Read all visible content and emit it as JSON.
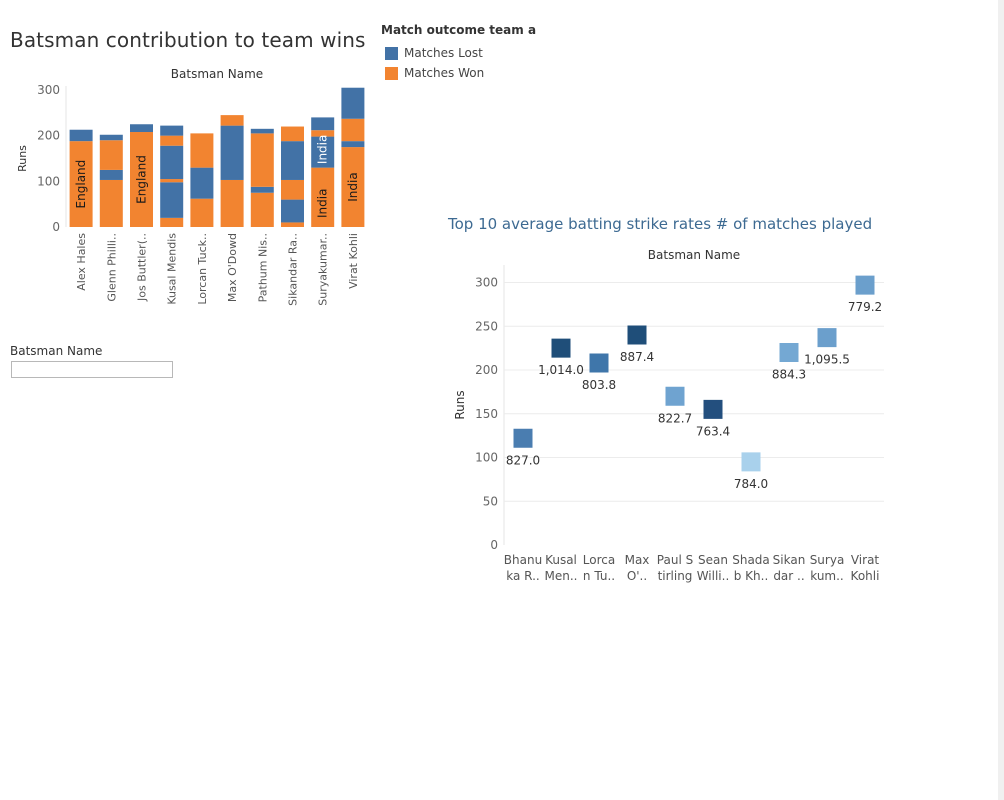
{
  "chart_data": [
    {
      "type": "bar",
      "stacked": true,
      "title": "Batsman contribution to team wins",
      "header": "Batsman Name",
      "ylabel": "Runs",
      "ylim": [
        0,
        300
      ],
      "yticks": [
        0,
        100,
        200,
        300
      ],
      "grid": false,
      "legend": {
        "title": "Match outcome team a",
        "position": "top-right",
        "items": [
          {
            "label": "Matches Lost",
            "color": "#4272a6"
          },
          {
            "label": "Matches Won",
            "color": "#f28430"
          }
        ]
      },
      "categories": [
        "Alex Hales",
        "Glenn Philli..",
        "Jos Buttler(..",
        "Kusal Mendis",
        "Lorcan Tuck..",
        "Max O'Dowd",
        "Pathum Nis..",
        "Sikandar Ra..",
        "Suryakumar..",
        "Virat Kohli"
      ],
      "bars": [
        {
          "segments": [
            {
              "outcome": "won",
              "v0": 0,
              "v1": 188
            },
            {
              "outcome": "lost",
              "v0": 188,
              "v1": 213
            }
          ],
          "label": "England"
        },
        {
          "segments": [
            {
              "outcome": "won",
              "v0": 0,
              "v1": 103
            },
            {
              "outcome": "lost",
              "v0": 103,
              "v1": 125
            },
            {
              "outcome": "won",
              "v0": 125,
              "v1": 190
            },
            {
              "outcome": "lost",
              "v0": 190,
              "v1": 202
            }
          ],
          "label": ""
        },
        {
          "segments": [
            {
              "outcome": "won",
              "v0": 0,
              "v1": 208
            },
            {
              "outcome": "lost",
              "v0": 208,
              "v1": 225
            }
          ],
          "label": "England"
        },
        {
          "segments": [
            {
              "outcome": "won",
              "v0": 0,
              "v1": 20
            },
            {
              "outcome": "lost",
              "v0": 20,
              "v1": 98
            },
            {
              "outcome": "won",
              "v0": 98,
              "v1": 105
            },
            {
              "outcome": "lost",
              "v0": 105,
              "v1": 178
            },
            {
              "outcome": "won",
              "v0": 178,
              "v1": 200
            },
            {
              "outcome": "lost",
              "v0": 200,
              "v1": 222
            }
          ],
          "label": ""
        },
        {
          "segments": [
            {
              "outcome": "won",
              "v0": 0,
              "v1": 62
            },
            {
              "outcome": "lost",
              "v0": 62,
              "v1": 130
            },
            {
              "outcome": "won",
              "v0": 130,
              "v1": 205
            }
          ],
          "label": ""
        },
        {
          "segments": [
            {
              "outcome": "won",
              "v0": 0,
              "v1": 103
            },
            {
              "outcome": "lost",
              "v0": 103,
              "v1": 222
            },
            {
              "outcome": "won",
              "v0": 222,
              "v1": 245
            }
          ],
          "label": ""
        },
        {
          "segments": [
            {
              "outcome": "won",
              "v0": 0,
              "v1": 75
            },
            {
              "outcome": "lost",
              "v0": 75,
              "v1": 88
            },
            {
              "outcome": "won",
              "v0": 88,
              "v1": 205
            },
            {
              "outcome": "lost",
              "v0": 205,
              "v1": 215
            }
          ],
          "label": ""
        },
        {
          "segments": [
            {
              "outcome": "won",
              "v0": 0,
              "v1": 10
            },
            {
              "outcome": "lost",
              "v0": 10,
              "v1": 60
            },
            {
              "outcome": "won",
              "v0": 60,
              "v1": 103
            },
            {
              "outcome": "lost",
              "v0": 103,
              "v1": 188
            },
            {
              "outcome": "won",
              "v0": 188,
              "v1": 220
            }
          ],
          "label": ""
        },
        {
          "segments": [
            {
              "outcome": "won",
              "v0": 0,
              "v1": 130
            },
            {
              "outcome": "lost",
              "v0": 130,
              "v1": 198
            },
            {
              "outcome": "won",
              "v0": 198,
              "v1": 212
            },
            {
              "outcome": "lost",
              "v0": 212,
              "v1": 240
            }
          ],
          "label": "India",
          "label2": "India"
        },
        {
          "segments": [
            {
              "outcome": "won",
              "v0": 0,
              "v1": 175
            },
            {
              "outcome": "lost",
              "v0": 175,
              "v1": 188
            },
            {
              "outcome": "won",
              "v0": 188,
              "v1": 237
            },
            {
              "outcome": "lost",
              "v0": 237,
              "v1": 305
            }
          ],
          "label": "India"
        }
      ]
    },
    {
      "type": "scatter",
      "title": "Top 10 average batting strike rates # of matches played",
      "header": "Batsman Name",
      "ylabel": "Runs",
      "ylim": [
        0,
        320
      ],
      "yticks": [
        0,
        50,
        100,
        150,
        200,
        250,
        300
      ],
      "grid": true,
      "categories": [
        [
          "Bhanu",
          "ka R.."
        ],
        [
          "Kusal",
          "Men.."
        ],
        [
          "Lorca",
          "n Tu.."
        ],
        [
          "Max",
          "O'.."
        ],
        [
          "Paul S",
          "tirling"
        ],
        [
          "Sean",
          "Willi.."
        ],
        [
          "Shada",
          "b Kh.."
        ],
        [
          "Sikan",
          "dar .."
        ],
        [
          "Surya",
          "kum.."
        ],
        [
          "Virat",
          "Kohli"
        ]
      ],
      "points": [
        {
          "value": 122,
          "label": "827.0",
          "color": "#4a7db0"
        },
        {
          "value": 225,
          "label": "1,014.0",
          "color": "#1f4e79"
        },
        {
          "value": 208,
          "label": "803.8",
          "color": "#3f76aa"
        },
        {
          "value": 240,
          "label": "887.4",
          "color": "#1f4e79"
        },
        {
          "value": 170,
          "label": "822.7",
          "color": "#6fa3d0"
        },
        {
          "value": 155,
          "label": "763.4",
          "color": "#234f7e"
        },
        {
          "value": 95,
          "label": "784.0",
          "color": "#a9d1ec"
        },
        {
          "value": 220,
          "label": "884.3",
          "color": "#74a8d3"
        },
        {
          "value": 237,
          "label": "1,095.5",
          "color": "#6b9fcc"
        },
        {
          "value": 297,
          "label": "779.2",
          "color": "#6b9fcc"
        }
      ]
    }
  ],
  "filter": {
    "label": "Batsman Name",
    "value": ""
  }
}
